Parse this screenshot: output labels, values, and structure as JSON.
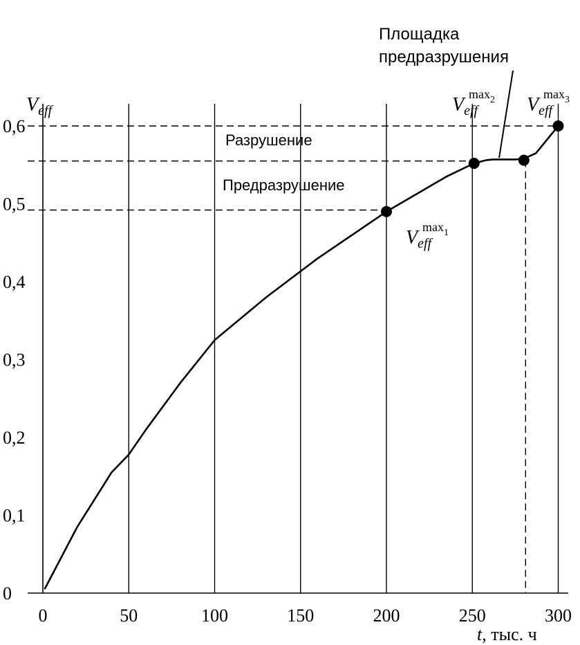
{
  "chart_data": {
    "type": "line",
    "y_axis_symbol": "V",
    "y_axis_subscript": "eff",
    "x_axis_symbol": "t",
    "x_axis_unit": ", тыс. ч",
    "x_tick_labels": [
      "0",
      "50",
      "100",
      "150",
      "200",
      "250",
      "300"
    ],
    "y_tick_labels": [
      "0",
      "0,1",
      "0,2",
      "0,3",
      "0,4",
      "0,5",
      "0,6"
    ],
    "x_ticks": [
      0,
      50,
      100,
      150,
      200,
      250,
      300
    ],
    "y_ticks": [
      0,
      0.1,
      0.2,
      0.3,
      0.4,
      0.5,
      0.6
    ],
    "xlim": [
      0,
      310
    ],
    "ylim": [
      0,
      0.6
    ],
    "grid": "vertical",
    "series": [
      {
        "x": [
          1,
          20,
          40,
          50,
          60,
          80,
          100,
          130,
          160,
          200,
          235,
          251,
          258,
          262,
          275,
          280,
          287,
          300
        ],
        "y": [
          0.005,
          0.085,
          0.155,
          0.178,
          0.21,
          0.27,
          0.325,
          0.38,
          0.43,
          0.49,
          0.535,
          0.552,
          0.556,
          0.557,
          0.557,
          0.558,
          0.565,
          0.6
        ]
      }
    ],
    "marked_points": [
      {
        "x": 200,
        "y": 0.49,
        "sup": "max",
        "sub": "1"
      },
      {
        "x": 251,
        "y": 0.552,
        "sup": "max",
        "sub": "2"
      },
      {
        "x": 280,
        "y": 0.556,
        "sup": "",
        "sub": ""
      },
      {
        "x": 300,
        "y": 0.6,
        "sup": "max",
        "sub": "3"
      }
    ],
    "reference_lines": [
      {
        "y": 0.6,
        "x_end": 300
      },
      {
        "y": 0.555,
        "x_end": 250
      },
      {
        "y": 0.492,
        "x_end": 200
      }
    ],
    "dashed_vertical": {
      "x": 281,
      "y_top": 0.556
    },
    "annotations": {
      "fracture": "Разрушение",
      "pre_fracture": "Предразрушение",
      "plateau_line1": "Площадка",
      "plateau_line2": "предразрушения"
    }
  }
}
